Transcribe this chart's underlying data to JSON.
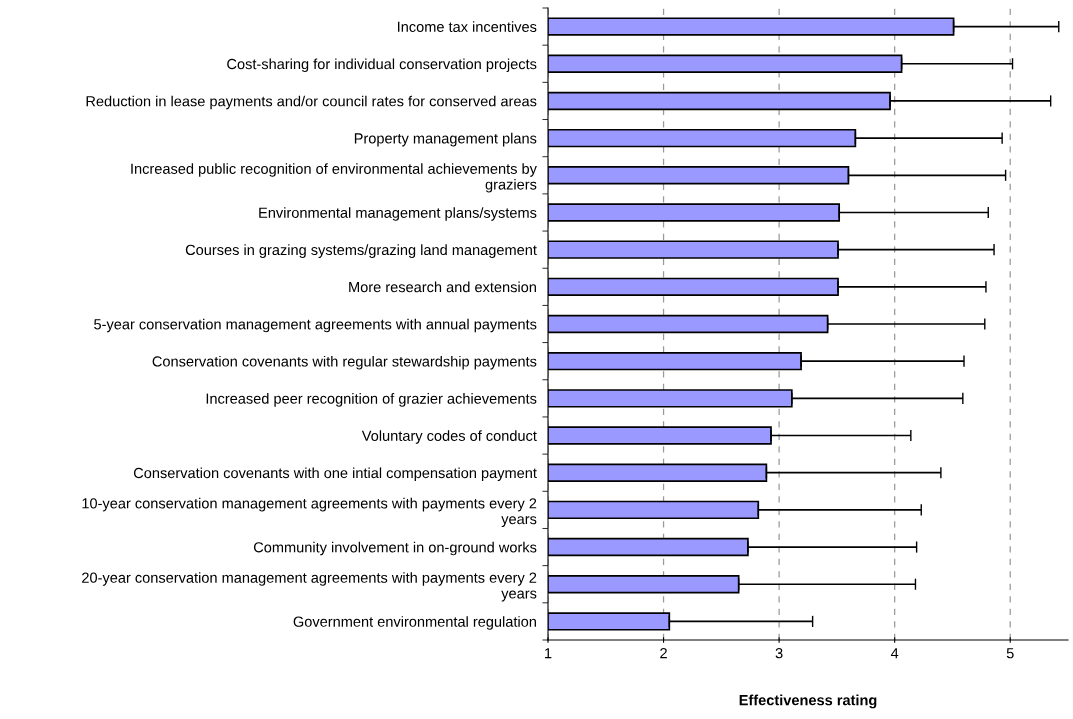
{
  "chart_data": {
    "type": "bar",
    "orientation": "horizontal",
    "xlabel": "Effectiveness rating",
    "categories": [
      "Income tax incentives",
      "Cost-sharing for individual conservation projects",
      "Reduction in lease payments and/or council rates for conserved areas",
      "Property management plans",
      "Increased public recognition of environmental achievements by graziers",
      "Environmental management plans/systems",
      "Courses in grazing systems/grazing land management",
      "More research and extension",
      "5-year conservation management agreements with annual payments",
      "Conservation covenants with regular stewardship payments",
      "Increased peer recognition of grazier achievements",
      "Voluntary codes of conduct",
      "Conservation covenants with one intial compensation payment",
      "10-year conservation management agreements with payments every 2 years",
      "Community involvement in on-ground works",
      "20-year conservation management agreements with payments every 2 years",
      "Government environmental regulation"
    ],
    "values": [
      4.51,
      4.06,
      3.96,
      3.66,
      3.6,
      3.52,
      3.51,
      3.51,
      3.42,
      3.19,
      3.11,
      2.93,
      2.89,
      2.82,
      2.73,
      2.65,
      2.05
    ],
    "errors": [
      [
        4.51,
        5.42
      ],
      [
        4.06,
        5.02
      ],
      [
        3.96,
        5.35
      ],
      [
        3.66,
        4.93
      ],
      [
        3.6,
        4.96
      ],
      [
        3.52,
        4.81
      ],
      [
        3.51,
        4.86
      ],
      [
        3.51,
        4.79
      ],
      [
        3.42,
        4.78
      ],
      [
        3.19,
        4.6
      ],
      [
        3.11,
        4.59
      ],
      [
        2.93,
        4.14
      ],
      [
        2.89,
        4.4
      ],
      [
        2.82,
        4.23
      ],
      [
        2.73,
        4.19
      ],
      [
        2.65,
        4.18
      ],
      [
        2.05,
        3.29
      ]
    ],
    "color": "#9999ff",
    "xlim": [
      1,
      5.5
    ],
    "xticks": [
      1,
      2,
      3,
      4,
      5
    ],
    "grid": "x"
  }
}
